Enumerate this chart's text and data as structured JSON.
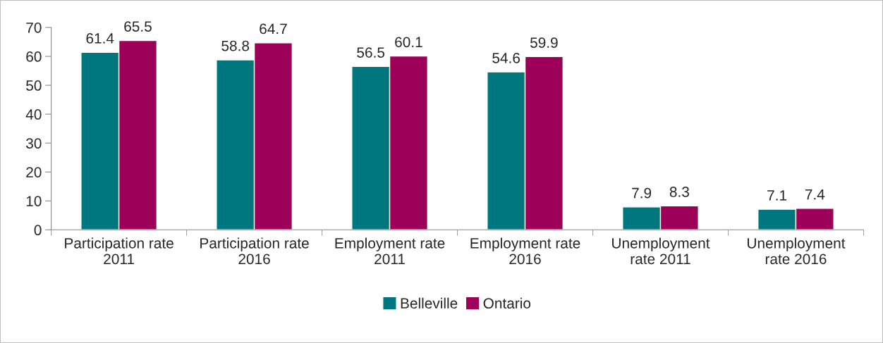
{
  "chart_data": {
    "type": "bar",
    "categories": [
      "Participation rate\n2011",
      "Participation rate\n2016",
      "Employment rate\n2011",
      "Employment rate\n2016",
      "Unemployment\nrate 2011",
      "Unemployment\nrate 2016"
    ],
    "series": [
      {
        "name": "Belleville",
        "color": "#00777f",
        "values": [
          61.4,
          58.8,
          56.5,
          54.6,
          7.9,
          7.1
        ]
      },
      {
        "name": "Ontario",
        "color": "#9c0058",
        "values": [
          65.5,
          64.7,
          60.1,
          59.9,
          8.3,
          7.4
        ]
      }
    ],
    "ylim": [
      0,
      70
    ],
    "yticks": [
      0,
      10,
      20,
      30,
      40,
      50,
      60,
      70
    ],
    "grid": false,
    "legend": "bottom",
    "data_labels": true
  }
}
